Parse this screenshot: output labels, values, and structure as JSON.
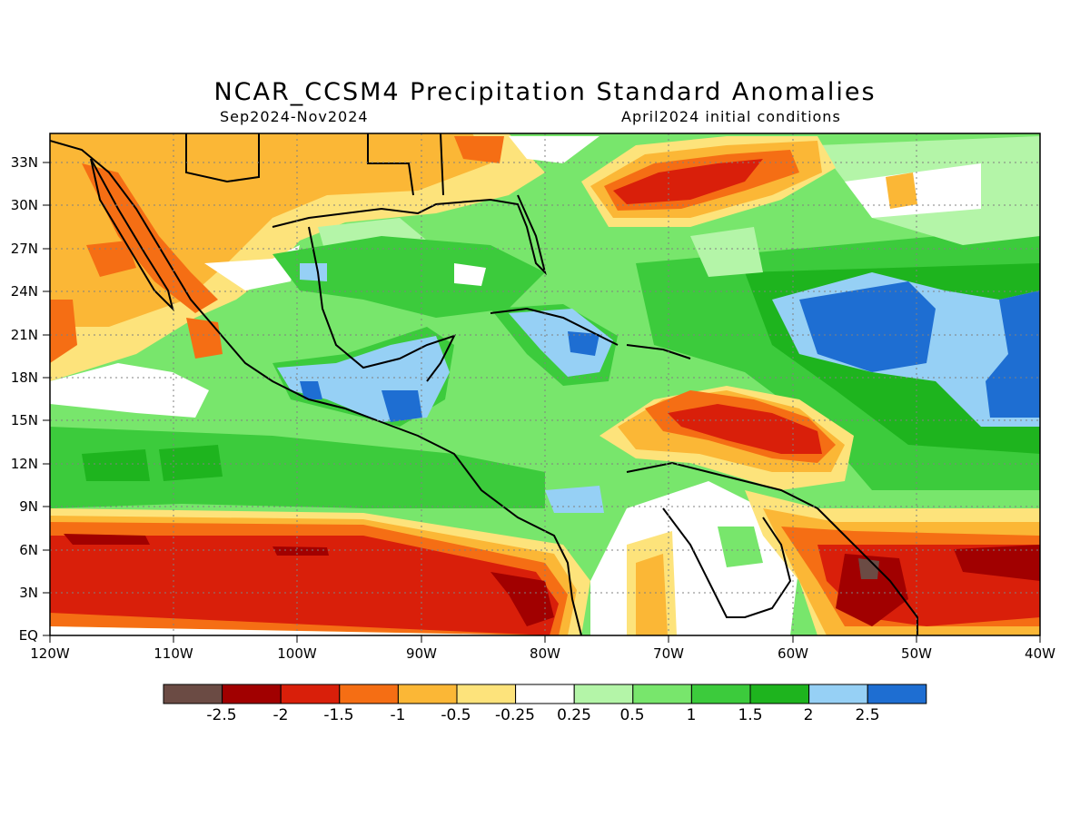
{
  "map": {
    "title": "NCAR_CCSM4 Precipitation Standard Anomalies",
    "period": "Sep2024-Nov2024",
    "initial_conditions": "April2024 initial conditions",
    "lat_labels": [
      "33N",
      "30N",
      "27N",
      "24N",
      "21N",
      "18N",
      "15N",
      "12N",
      "9N",
      "6N",
      "3N",
      "EQ"
    ],
    "lon_labels": [
      "120W",
      "110W",
      "100W",
      "90W",
      "80W",
      "70W",
      "60W",
      "50W",
      "40W"
    ]
  },
  "colorbar": {
    "colors": [
      "#6b4b44",
      "#a10000",
      "#d91f0a",
      "#f56e14",
      "#fbb736",
      "#fde37b",
      "#ffffff",
      "#b4f5a8",
      "#78e66c",
      "#3ccb3c",
      "#1eb41e",
      "#96d0f5",
      "#1e6ed2"
    ],
    "labels": [
      "-2.5",
      "-2",
      "-1.5",
      "-1",
      "-0.5",
      "-0.25",
      "0.25",
      "0.5",
      "1",
      "1.5",
      "2",
      "2.5"
    ]
  }
}
